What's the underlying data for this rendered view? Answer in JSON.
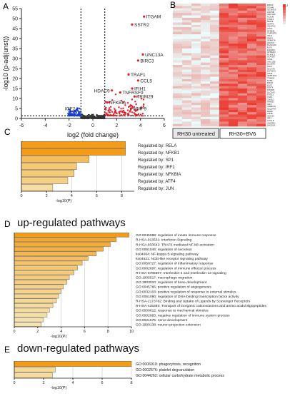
{
  "panels": {
    "A": "A",
    "B": "B",
    "C": "C",
    "D": "D",
    "E": "E"
  },
  "chart_data": [
    {
      "id": "A",
      "type": "scatter",
      "xlabel": "log2 (fold change)",
      "ylabel": "-log10 (p-adj(unst))",
      "xlim": [
        -6,
        6
      ],
      "ylim": [
        0,
        55
      ],
      "xticks": [
        -6,
        -4,
        -2,
        0,
        2,
        4,
        6
      ],
      "yticks": [
        0,
        5,
        10,
        15,
        20,
        25,
        30,
        35,
        40,
        45,
        50,
        55
      ],
      "labeled_points": [
        {
          "label": "ITGAM",
          "x": 4.3,
          "y": 51
        },
        {
          "label": "SSTR2",
          "x": 3.3,
          "y": 47
        },
        {
          "label": "UNC13A",
          "x": 4.2,
          "y": 32
        },
        {
          "label": "BIRC3",
          "x": 3.8,
          "y": 29
        },
        {
          "label": "TRAF1",
          "x": 3.0,
          "y": 22
        },
        {
          "label": "CCL5",
          "x": 3.8,
          "y": 19
        },
        {
          "label": "HDAC9",
          "x": 1.6,
          "y": 14
        },
        {
          "label": "IFIH1",
          "x": 3.3,
          "y": 15
        },
        {
          "label": "TNFRSF9",
          "x": 2.3,
          "y": 13
        },
        {
          "label": "TRIM29",
          "x": 3.5,
          "y": 11
        },
        {
          "label": "IGF2",
          "x": -1.3,
          "y": 5
        },
        {
          "label": "NFKBIA",
          "x": 1.2,
          "y": 8
        },
        {
          "label": "MMP9",
          "x": 3.2,
          "y": 5
        }
      ],
      "colors": {
        "up": "#e0202a",
        "down": "#1a3fc7",
        "ns": "#333333"
      }
    },
    {
      "id": "B",
      "type": "heatmap",
      "xlabels": [
        "RH30 untreated",
        "RH30+BV6"
      ],
      "rows": [
        "BIRC3",
        "ITGAM",
        "SLC6A13",
        "UNC5B",
        "UNC13A",
        "KCNJ6",
        "TRAF1",
        "MMP9",
        "SSTR2",
        "SMAD12",
        "CCL5",
        "NFKBIA",
        "TNFRSF9",
        "IFIH1",
        "RND1",
        "SEMA7A",
        "HDAC9",
        "PLA2G4C",
        "ELF3",
        "FAM20C",
        "SPRED3",
        "PLXNC1",
        "STAT5A",
        "OASL",
        "UNC13B",
        "SLC9A9",
        "KLF4",
        "SLC7A5",
        "NOTCH1",
        "CD44",
        "SERTAD4",
        "TRIM29",
        "NT5E",
        "RRAD",
        "KLF2",
        "DDIT4",
        "PIK3IP1",
        "SLC2A3",
        "FOSL1",
        "CSF1",
        "CHI3L1",
        "HAND2",
        "IGF2",
        "CAMK2A",
        "SLC16A3",
        "RELB",
        "JUNB",
        "SOCS3",
        "IRF1",
        "CXCL8",
        "ANKRD1",
        "SH2D2A"
      ],
      "legend_high": "2"
    },
    {
      "id": "C",
      "type": "bar",
      "orientation": "horizontal",
      "categories": [
        "Regulated by: RELA",
        "Regulated by: NFKB1",
        "Regulated by: SP1",
        "Regulated by: IRF1",
        "Regulated by: NFKBIA",
        "Regulated by: ATF4",
        "Regulated by: JUN"
      ],
      "values": [
        8.3,
        8.3,
        5.4,
        4.4,
        4.2,
        3.7,
        2.5
      ],
      "xlabel": "-log10(P)",
      "xlim": [
        0,
        9
      ],
      "xticks": [
        0,
        2,
        4,
        6,
        8
      ]
    },
    {
      "id": "D",
      "title": "up-regulated pathways",
      "type": "bar",
      "orientation": "horizontal",
      "categories": [
        "GO:0045088: regulation of innate immune response",
        "R-HSA-913531: Interferon Signaling",
        "R-HSA-933542: TRAF6 mediated NF-kB activation",
        "GO:0051046: regulation of secretion",
        "ko04064: NF-kappa B signaling pathway",
        "ko04621: NOD-like receptor signaling pathway",
        "GO:0050727: regulation of inflammatory response",
        "GO:0002697: regulation of immune effector process",
        "R-HSA-6785807: Interleukin-4 and Interleukin-13 signaling",
        "GO:1905517: macrophage migration",
        "GO:1903010: regulation of bone development",
        "GO:0045766: positive regulation of angiogenesis",
        "GO:0032103: positive regulation of response to external stimulus",
        "GO:0051090: regulation of DNA-binding transcription factor activity",
        "R-HSA-2173782: Binding and Uptake of Ligands by Scavenger Receptors",
        "R-HSA-425393: Transport of inorganic cations/anions and amino acids/oligopeptides",
        "GO:0009612: response to mechanical stimulus",
        "GO:0002683: negative regulation of immune system process",
        "GO:0021675: nerve development",
        "GO:1990138: neuron projection extension"
      ],
      "values": [
        9.8,
        8.7,
        8.2,
        7.6,
        7.0,
        6.3,
        5.8,
        5.4,
        5.1,
        4.7,
        4.5,
        4.2,
        4.0,
        3.8,
        3.6,
        3.3,
        3.0,
        2.8,
        2.5,
        2.3
      ],
      "xlabel": "-log10(P)",
      "xlim": [
        0,
        10
      ],
      "xticks": [
        0,
        2,
        4,
        6,
        8,
        10
      ]
    },
    {
      "id": "E",
      "title": "down-regulated pathways",
      "type": "bar",
      "orientation": "horizontal",
      "categories": [
        "GO:0006910: phagocytosis, recognition",
        "GO:0002576: platelet degranulation",
        "GO:0044262: cellular carbohydrate metabolic process"
      ],
      "values": [
        8.0,
        2.8,
        2.6
      ],
      "xlabel": "-log10(P)",
      "xlim": [
        0,
        8
      ],
      "xticks": [
        0,
        2,
        4,
        6,
        8
      ]
    }
  ]
}
